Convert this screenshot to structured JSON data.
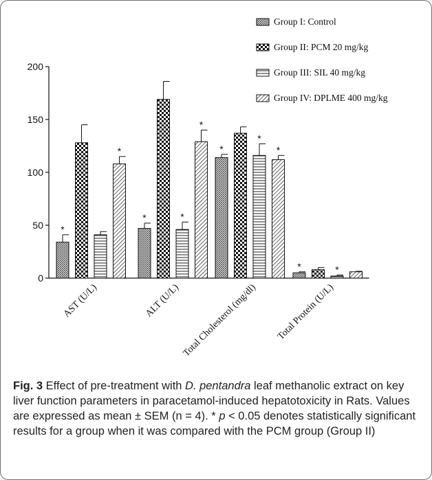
{
  "chart_data": {
    "type": "bar",
    "categories": [
      "AST (U/L)",
      "ALT (U/L)",
      "Total Cholesterol (mg/dl)",
      "Total Protein (U/L)"
    ],
    "series": [
      {
        "name": "Group I: Control",
        "values": [
          34,
          47,
          114,
          5
        ],
        "errors": [
          7,
          5,
          3,
          1
        ],
        "significant": [
          true,
          true,
          true,
          true
        ],
        "pattern": "fine-crosshatch"
      },
      {
        "name": "Group II: PCM 20 mg/kg",
        "values": [
          128,
          169,
          137,
          8
        ],
        "errors": [
          17,
          17,
          6,
          2
        ],
        "significant": [
          false,
          false,
          false,
          false
        ],
        "pattern": "checkerboard"
      },
      {
        "name": "Group III: SIL 40 mg/kg",
        "values": [
          41,
          46,
          116,
          2
        ],
        "errors": [
          3,
          7,
          11,
          1
        ],
        "significant": [
          false,
          true,
          true,
          true
        ],
        "pattern": "horizontal-lines"
      },
      {
        "name": "Group IV: DPLME 400 mg/kg",
        "values": [
          108,
          129,
          112,
          6
        ],
        "errors": [
          7,
          11,
          4,
          0.5
        ],
        "significant": [
          true,
          true,
          true,
          false
        ],
        "pattern": "diagonal-lines"
      }
    ],
    "significance_marker": "*",
    "yticks": [
      0,
      50,
      100,
      150,
      200
    ],
    "ylim": [
      0,
      200
    ],
    "xlabel": "",
    "ylabel": "",
    "legend_position": "top-right"
  },
  "caption": {
    "fig_label": "Fig. 3",
    "text_before_italic": " Effect of pre-treatment with ",
    "italic_text": "D. pentandra",
    "text_after_italic": " leaf methanolic extract on key liver function parameters in paracetamol-induced hepatotoxicity in Rats. Values are expressed as mean ± SEM (n = 4). * ",
    "p_symbol": "p",
    "text_end": " < 0.05 denotes statistically significant results for a group when it was compared with the PCM group (Group II)"
  }
}
